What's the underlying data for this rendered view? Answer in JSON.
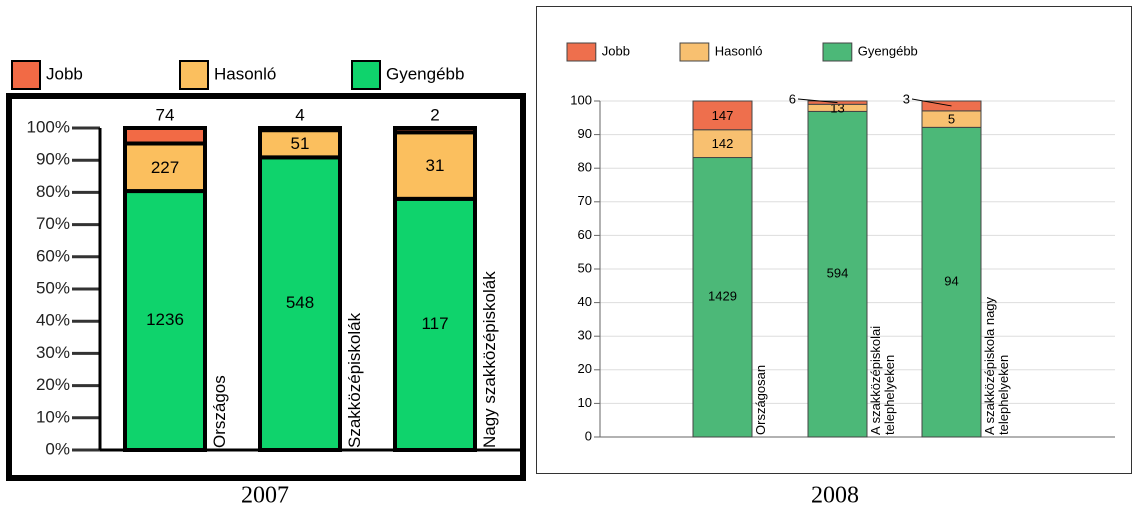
{
  "chart_data": [
    {
      "type": "bar",
      "stacking": "percent",
      "caption": "2007",
      "categories": [
        "Országos",
        "Szakközépiskolák",
        "Nagy szakközépiskolák"
      ],
      "series": [
        {
          "name": "Jobb",
          "color": "#f26a45",
          "values": [
            74,
            4,
            2
          ]
        },
        {
          "name": "Hasonló",
          "color": "#fbbf5e",
          "values": [
            227,
            51,
            31
          ]
        },
        {
          "name": "Gyengébb",
          "color": "#0fd36c",
          "values": [
            1236,
            548,
            117
          ]
        }
      ],
      "ylim": [
        0,
        100
      ],
      "yticks": [
        {
          "value": 0,
          "label": "0%"
        },
        {
          "value": 10,
          "label": "10%"
        },
        {
          "value": 20,
          "label": "20%"
        },
        {
          "value": 30,
          "label": "30%"
        },
        {
          "value": 40,
          "label": "40%"
        },
        {
          "value": 50,
          "label": "50%"
        },
        {
          "value": 60,
          "label": "60%"
        },
        {
          "value": 70,
          "label": "70%"
        },
        {
          "value": 80,
          "label": "80%"
        },
        {
          "value": 90,
          "label": "90%"
        },
        {
          "value": 100,
          "label": "100%"
        }
      ],
      "grid": false,
      "legend": "top-left"
    },
    {
      "type": "bar",
      "stacking": "percent",
      "caption": "2008",
      "categories": [
        "Országosan",
        "A szakközépiskolai telephelyeken",
        "A szakközépiskola nagy telephelyeken"
      ],
      "series": [
        {
          "name": "Jobb",
          "color": "#ee6f4d",
          "values": [
            147,
            6,
            3
          ]
        },
        {
          "name": "Hasonló",
          "color": "#f8c070",
          "values": [
            142,
            13,
            5
          ]
        },
        {
          "name": "Gyengébb",
          "color": "#4cb878",
          "values": [
            1429,
            594,
            94
          ]
        }
      ],
      "ylim": [
        0,
        100
      ],
      "yticks": [
        0,
        10,
        20,
        30,
        40,
        50,
        60,
        70,
        80,
        90,
        100
      ],
      "grid": true,
      "legend": "top-left"
    }
  ]
}
